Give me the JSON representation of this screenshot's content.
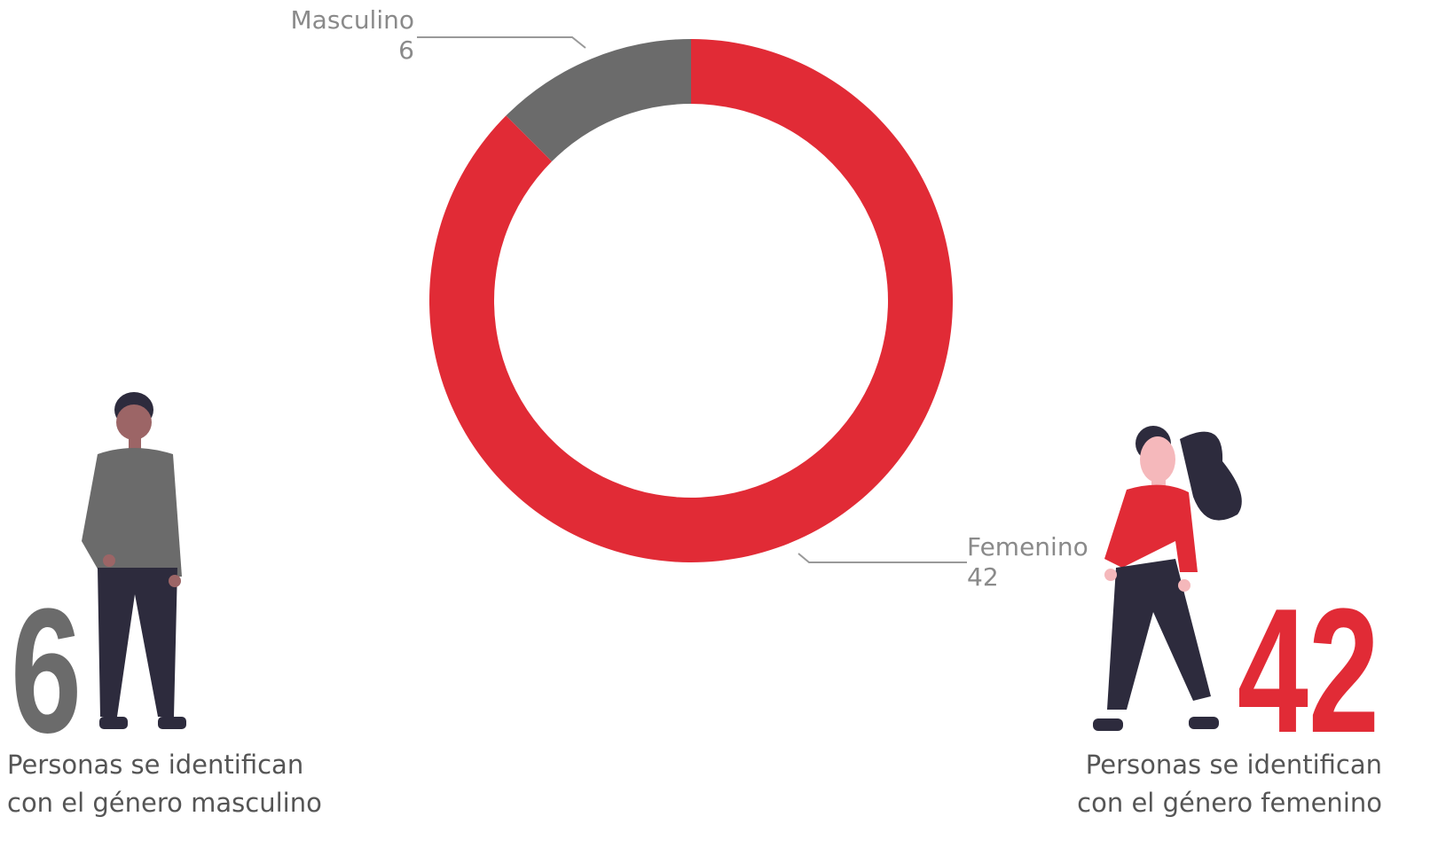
{
  "chart_data": {
    "type": "donut",
    "categories": [
      "Femenino",
      "Masculino"
    ],
    "values": [
      42,
      6
    ],
    "colors": [
      "#e12b36",
      "#6b6b6b"
    ],
    "annotations": [
      [
        "Personas se identifican",
        "con el género masculino"
      ],
      [
        "Personas se identifican",
        "con el género femenino"
      ]
    ]
  }
}
